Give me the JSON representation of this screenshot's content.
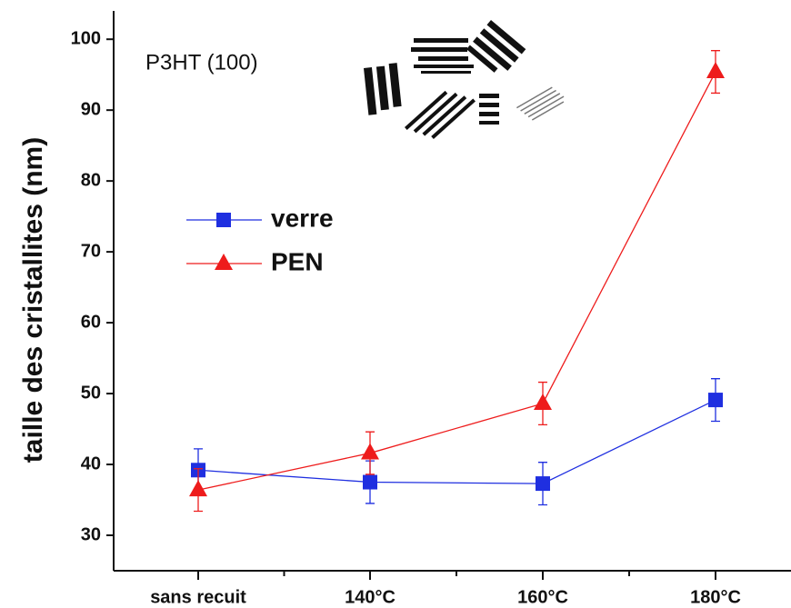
{
  "chart_data": {
    "type": "line",
    "y_label": "taille des cristallites (nm)",
    "annotation": "P3HT (100)",
    "categories": [
      "sans recuit",
      "140°C",
      "160°C",
      "180°C"
    ],
    "series": [
      {
        "name": "verre",
        "color": "#1f2fe0",
        "marker": "square",
        "values": [
          39.2,
          37.5,
          37.3,
          49.1
        ],
        "errors": [
          3,
          3,
          3,
          3
        ]
      },
      {
        "name": "PEN",
        "color": "#ee1c1c",
        "marker": "triangle",
        "values": [
          36.4,
          41.6,
          48.6,
          95.4
        ],
        "errors": [
          3,
          3,
          3,
          3
        ]
      }
    ],
    "ylim": [
      25,
      104
    ],
    "yticks": [
      30,
      40,
      50,
      60,
      70,
      80,
      90,
      100
    ]
  }
}
